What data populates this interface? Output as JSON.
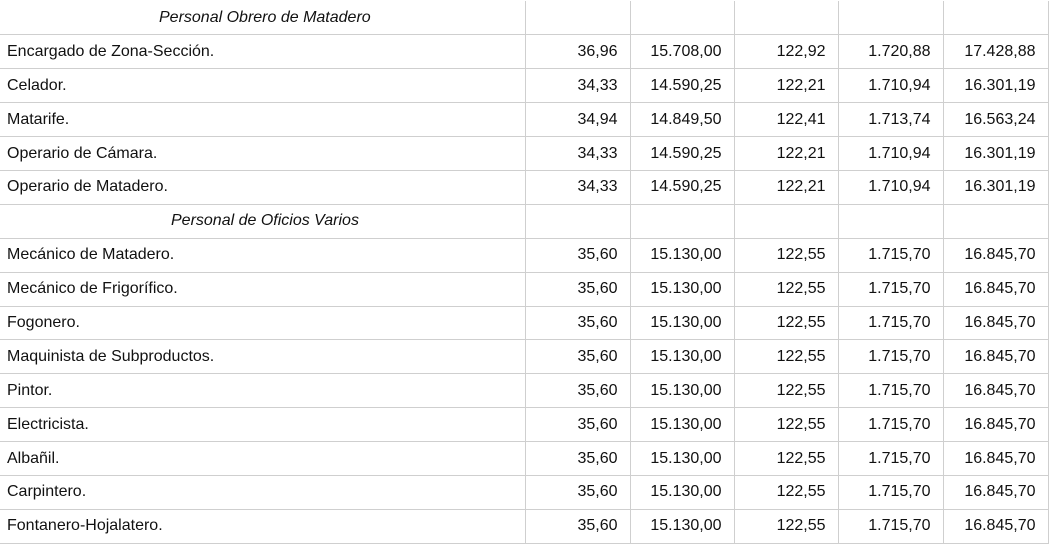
{
  "rows": [
    {
      "type": "section",
      "label": "Personal Obrero de Matadero"
    },
    {
      "type": "data",
      "label": "Encargado de Zona-Sección.",
      "values": [
        "36,96",
        "15.708,00",
        "122,92",
        "1.720,88",
        "17.428,88"
      ]
    },
    {
      "type": "data",
      "label": "Celador.",
      "values": [
        "34,33",
        "14.590,25",
        "122,21",
        "1.710,94",
        "16.301,19"
      ]
    },
    {
      "type": "data",
      "label": "Matarife.",
      "values": [
        "34,94",
        "14.849,50",
        "122,41",
        "1.713,74",
        "16.563,24"
      ]
    },
    {
      "type": "data",
      "label": "Operario de Cámara.",
      "values": [
        "34,33",
        "14.590,25",
        "122,21",
        "1.710,94",
        "16.301,19"
      ]
    },
    {
      "type": "data",
      "label": "Operario de Matadero.",
      "values": [
        "34,33",
        "14.590,25",
        "122,21",
        "1.710,94",
        "16.301,19"
      ]
    },
    {
      "type": "section",
      "label": "Personal de Oficios Varios"
    },
    {
      "type": "data",
      "label": "Mecánico de Matadero.",
      "values": [
        "35,60",
        "15.130,00",
        "122,55",
        "1.715,70",
        "16.845,70"
      ]
    },
    {
      "type": "data",
      "label": "Mecánico de Frigorífico.",
      "values": [
        "35,60",
        "15.130,00",
        "122,55",
        "1.715,70",
        "16.845,70"
      ]
    },
    {
      "type": "data",
      "label": "Fogonero.",
      "values": [
        "35,60",
        "15.130,00",
        "122,55",
        "1.715,70",
        "16.845,70"
      ]
    },
    {
      "type": "data",
      "label": "Maquinista de Subproductos.",
      "values": [
        "35,60",
        "15.130,00",
        "122,55",
        "1.715,70",
        "16.845,70"
      ]
    },
    {
      "type": "data",
      "label": "Pintor.",
      "values": [
        "35,60",
        "15.130,00",
        "122,55",
        "1.715,70",
        "16.845,70"
      ]
    },
    {
      "type": "data",
      "label": "Electricista.",
      "values": [
        "35,60",
        "15.130,00",
        "122,55",
        "1.715,70",
        "16.845,70"
      ]
    },
    {
      "type": "data",
      "label": "Albañil.",
      "values": [
        "35,60",
        "15.130,00",
        "122,55",
        "1.715,70",
        "16.845,70"
      ]
    },
    {
      "type": "data",
      "label": "Carpintero.",
      "values": [
        "35,60",
        "15.130,00",
        "122,55",
        "1.715,70",
        "16.845,70"
      ]
    },
    {
      "type": "data",
      "label": "Fontanero-Hojalatero.",
      "values": [
        "35,60",
        "15.130,00",
        "122,55",
        "1.715,70",
        "16.845,70"
      ]
    }
  ]
}
